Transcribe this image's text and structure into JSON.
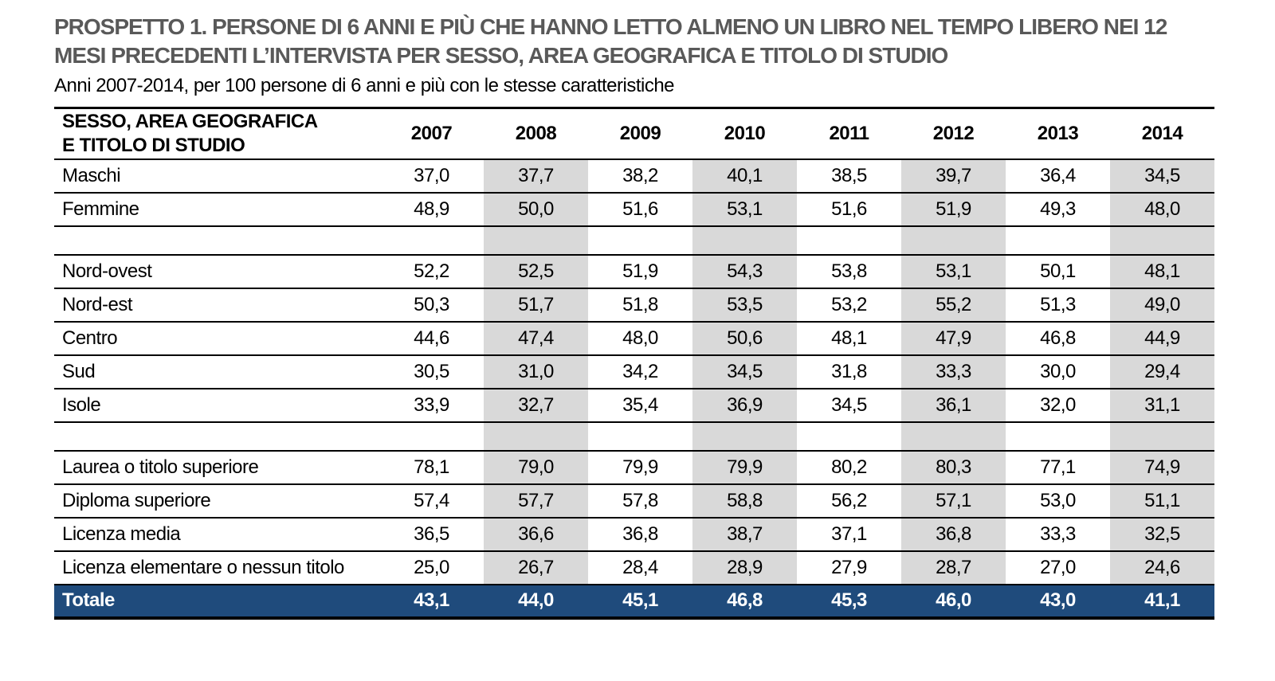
{
  "title": {
    "line1": "PROSPETTO 1. PERSONE DI 6 ANNI E PIÙ CHE HANNO LETTO ALMENO UN LIBRO NEL TEMPO LIBERO NEI 12",
    "line2": "MESI PRECEDENTI L’INTERVISTA PER SESSO, AREA GEOGRAFICA E TITOLO DI STUDIO"
  },
  "subtitle": "Anni 2007-2014, per 100 persone di 6 anni e più con le stesse caratteristiche",
  "table": {
    "stub_header": "SESSO, AREA GEOGRAFICA\nE TITOLO DI STUDIO",
    "years": [
      "2007",
      "2008",
      "2009",
      "2010",
      "2011",
      "2012",
      "2013",
      "2014"
    ],
    "shaded_years": [
      "2008",
      "2010",
      "2012",
      "2014"
    ],
    "sections": [
      {
        "name": "sesso",
        "rows": [
          {
            "label": "Maschi",
            "values": [
              "37,0",
              "37,7",
              "38,2",
              "40,1",
              "38,5",
              "39,7",
              "36,4",
              "34,5"
            ]
          },
          {
            "label": "Femmine",
            "values": [
              "48,9",
              "50,0",
              "51,6",
              "53,1",
              "51,6",
              "51,9",
              "49,3",
              "48,0"
            ]
          }
        ]
      },
      {
        "name": "area-geografica",
        "rows": [
          {
            "label": "Nord-ovest",
            "values": [
              "52,2",
              "52,5",
              "51,9",
              "54,3",
              "53,8",
              "53,1",
              "50,1",
              "48,1"
            ]
          },
          {
            "label": "Nord-est",
            "values": [
              "50,3",
              "51,7",
              "51,8",
              "53,5",
              "53,2",
              "55,2",
              "51,3",
              "49,0"
            ]
          },
          {
            "label": "Centro",
            "values": [
              "44,6",
              "47,4",
              "48,0",
              "50,6",
              "48,1",
              "47,9",
              "46,8",
              "44,9"
            ]
          },
          {
            "label": "Sud",
            "values": [
              "30,5",
              "31,0",
              "34,2",
              "34,5",
              "31,8",
              "33,3",
              "30,0",
              "29,4"
            ]
          },
          {
            "label": "Isole",
            "values": [
              "33,9",
              "32,7",
              "35,4",
              "36,9",
              "34,5",
              "36,1",
              "32,0",
              "31,1"
            ]
          }
        ]
      },
      {
        "name": "titolo-di-studio",
        "rows": [
          {
            "label": "Laurea o titolo superiore",
            "values": [
              "78,1",
              "79,0",
              "79,9",
              "79,9",
              "80,2",
              "80,3",
              "77,1",
              "74,9"
            ]
          },
          {
            "label": "Diploma superiore",
            "values": [
              "57,4",
              "57,7",
              "57,8",
              "58,8",
              "56,2",
              "57,1",
              "53,0",
              "51,1"
            ]
          },
          {
            "label": "Licenza media",
            "values": [
              "36,5",
              "36,6",
              "36,8",
              "38,7",
              "37,1",
              "36,8",
              "33,3",
              "32,5"
            ]
          },
          {
            "label": "Licenza elementare o nessun titolo",
            "values": [
              "25,0",
              "26,7",
              "28,4",
              "28,9",
              "27,9",
              "28,7",
              "27,0",
              "24,6"
            ]
          }
        ]
      }
    ],
    "total": {
      "label": "Totale",
      "values": [
        "43,1",
        "44,0",
        "45,1",
        "46,8",
        "45,3",
        "46,0",
        "43,0",
        "41,1"
      ]
    }
  },
  "colors": {
    "title_text": "#595959",
    "band": "#D9D9D9",
    "total_bg": "#1F4B7C",
    "total_text": "#FFFFFF",
    "border": "#000000"
  }
}
